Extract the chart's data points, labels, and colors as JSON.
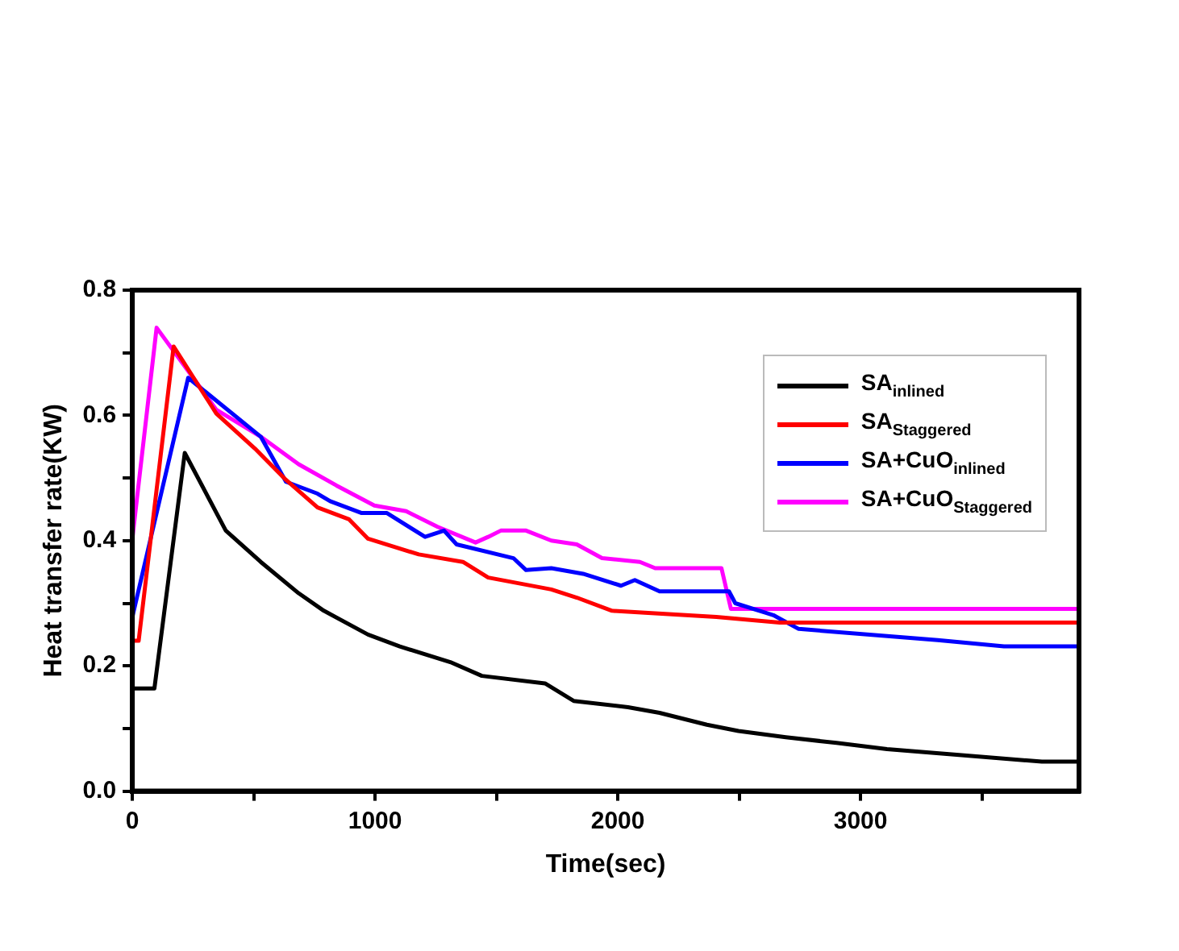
{
  "chart_data": {
    "type": "line",
    "xlabel": "Time(sec)",
    "ylabel": "Heat transfer rate(KW)",
    "xlim": [
      0,
      3900
    ],
    "ylim": [
      0,
      0.8
    ],
    "xticks": [
      0,
      {
        "value": 500,
        "label": null
      },
      1000,
      {
        "value": 1500,
        "label": null
      },
      2000,
      {
        "value": 2500,
        "label": null
      },
      3000,
      {
        "value": 3500,
        "label": null
      }
    ],
    "yticks": [
      "0.0",
      {
        "value": 0.1,
        "label": null
      },
      0.2,
      {
        "value": 0.3,
        "label": null
      },
      0.4,
      {
        "value": 0.5,
        "label": null
      },
      0.6,
      {
        "value": 0.7,
        "label": null
      },
      0.8
    ],
    "legend": "top right",
    "marker": "none",
    "line_style": "solid",
    "grid": false,
    "series": [
      {
        "name": "SA$_{inlined}$",
        "color": "#000000",
        "x": [
          0,
          91,
          216,
          385,
          529,
          685,
          789,
          971,
          1102,
          1310,
          1440,
          1700,
          1818,
          2042,
          2172,
          2367,
          2497,
          2692,
          2901,
          3109,
          3396,
          3747,
          3900
        ],
        "values": [
          0.164,
          0.164,
          0.54,
          0.416,
          0.366,
          0.316,
          0.288,
          0.25,
          0.231,
          0.206,
          0.184,
          0.172,
          0.144,
          0.134,
          0.125,
          0.106,
          0.096,
          0.086,
          0.077,
          0.067,
          0.058,
          0.047,
          0.047
        ]
      },
      {
        "name": "SA$_{Staggered}$",
        "color": "#ff0000",
        "x": [
          0,
          26,
          170,
          346,
          505,
          633,
          763,
          893,
          971,
          1180,
          1362,
          1466,
          1726,
          1831,
          1976,
          2406,
          2667,
          3900
        ],
        "values": [
          0.24,
          0.24,
          0.71,
          0.603,
          0.547,
          0.497,
          0.453,
          0.434,
          0.403,
          0.378,
          0.366,
          0.341,
          0.322,
          0.309,
          0.288,
          0.278,
          0.269,
          0.269
        ]
      },
      {
        "name": "SA+CuO$_{inlined}$",
        "color": "#0000ff",
        "x": [
          0,
          230,
          529,
          633,
          763,
          815,
          945,
          1049,
          1206,
          1284,
          1336,
          1570,
          1622,
          1726,
          1857,
          2013,
          2070,
          2172,
          2458,
          2484,
          2641,
          2745,
          3318,
          3591,
          3900
        ],
        "values": [
          0.278,
          0.66,
          0.566,
          0.494,
          0.475,
          0.463,
          0.444,
          0.444,
          0.406,
          0.416,
          0.394,
          0.372,
          0.353,
          0.356,
          0.347,
          0.328,
          0.337,
          0.319,
          0.319,
          0.3,
          0.281,
          0.259,
          0.241,
          0.231,
          0.231
        ]
      },
      {
        "name": "SA+CuO$_{Staggered}$",
        "color": "#ff00ff",
        "x": [
          0,
          100,
          346,
          529,
          685,
          841,
          997,
          1128,
          1258,
          1414,
          1466,
          1518,
          1622,
          1726,
          1831,
          1935,
          2091,
          2154,
          2427,
          2466,
          3900
        ],
        "values": [
          0.403,
          0.74,
          0.609,
          0.566,
          0.522,
          0.488,
          0.456,
          0.447,
          0.422,
          0.397,
          0.406,
          0.416,
          0.416,
          0.4,
          0.394,
          0.372,
          0.366,
          0.356,
          0.356,
          0.291,
          0.291
        ]
      }
    ]
  }
}
